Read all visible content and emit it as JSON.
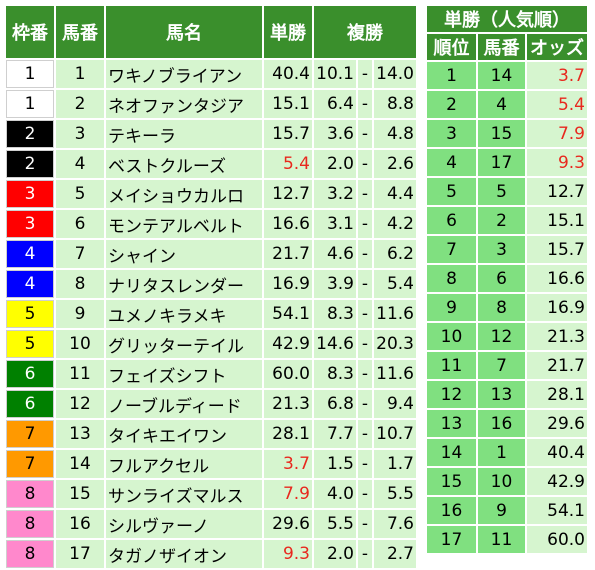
{
  "main_headers": {
    "frame": "枠番",
    "number": "馬番",
    "name": "馬名",
    "win": "単勝",
    "place": "複勝"
  },
  "horses": [
    {
      "frame": "1",
      "num": "1",
      "name": "ワキノブライアン",
      "win": "40.4",
      "place_lo": "10.1",
      "sep": "-",
      "place_hi": "14.0",
      "frame_color": "f1",
      "win_low": false
    },
    {
      "frame": "1",
      "num": "2",
      "name": "ネオファンタジア",
      "win": "15.1",
      "place_lo": "6.4",
      "sep": "-",
      "place_hi": "8.8",
      "frame_color": "f1",
      "win_low": false
    },
    {
      "frame": "2",
      "num": "3",
      "name": "テキーラ",
      "win": "15.7",
      "place_lo": "3.6",
      "sep": "-",
      "place_hi": "4.8",
      "frame_color": "f2",
      "win_low": false
    },
    {
      "frame": "2",
      "num": "4",
      "name": "ベストクルーズ",
      "win": "5.4",
      "place_lo": "2.0",
      "sep": "-",
      "place_hi": "2.6",
      "frame_color": "f2",
      "win_low": true
    },
    {
      "frame": "3",
      "num": "5",
      "name": "メイショウカルロ",
      "win": "12.7",
      "place_lo": "3.2",
      "sep": "-",
      "place_hi": "4.4",
      "frame_color": "f3",
      "win_low": false
    },
    {
      "frame": "3",
      "num": "6",
      "name": "モンテアルベルト",
      "win": "16.6",
      "place_lo": "3.1",
      "sep": "-",
      "place_hi": "4.2",
      "frame_color": "f3",
      "win_low": false
    },
    {
      "frame": "4",
      "num": "7",
      "name": "シャイン",
      "win": "21.7",
      "place_lo": "4.6",
      "sep": "-",
      "place_hi": "6.2",
      "frame_color": "f4",
      "win_low": false
    },
    {
      "frame": "4",
      "num": "8",
      "name": "ナリタスレンダー",
      "win": "16.9",
      "place_lo": "3.9",
      "sep": "-",
      "place_hi": "5.4",
      "frame_color": "f4",
      "win_low": false
    },
    {
      "frame": "5",
      "num": "9",
      "name": "ユメノキラメキ",
      "win": "54.1",
      "place_lo": "8.3",
      "sep": "-",
      "place_hi": "11.6",
      "frame_color": "f5",
      "win_low": false
    },
    {
      "frame": "5",
      "num": "10",
      "name": "グリッターテイル",
      "win": "42.9",
      "place_lo": "14.6",
      "sep": "-",
      "place_hi": "20.3",
      "frame_color": "f5",
      "win_low": false
    },
    {
      "frame": "6",
      "num": "11",
      "name": "フェイズシフト",
      "win": "60.0",
      "place_lo": "8.3",
      "sep": "-",
      "place_hi": "11.6",
      "frame_color": "f6",
      "win_low": false
    },
    {
      "frame": "6",
      "num": "12",
      "name": "ノーブルディード",
      "win": "21.3",
      "place_lo": "6.8",
      "sep": "-",
      "place_hi": "9.4",
      "frame_color": "f6",
      "win_low": false
    },
    {
      "frame": "7",
      "num": "13",
      "name": "タイキエイワン",
      "win": "28.1",
      "place_lo": "7.7",
      "sep": "-",
      "place_hi": "10.7",
      "frame_color": "f7",
      "win_low": false
    },
    {
      "frame": "7",
      "num": "14",
      "name": "フルアクセル",
      "win": "3.7",
      "place_lo": "1.5",
      "sep": "-",
      "place_hi": "1.7",
      "frame_color": "f7",
      "win_low": true
    },
    {
      "frame": "8",
      "num": "15",
      "name": "サンライズマルス",
      "win": "7.9",
      "place_lo": "4.0",
      "sep": "-",
      "place_hi": "5.5",
      "frame_color": "f8",
      "win_low": true
    },
    {
      "frame": "8",
      "num": "16",
      "name": "シルヴァーノ",
      "win": "29.6",
      "place_lo": "5.5",
      "sep": "-",
      "place_hi": "7.6",
      "frame_color": "f8",
      "win_low": false
    },
    {
      "frame": "8",
      "num": "17",
      "name": "タガノザイオン",
      "win": "9.3",
      "place_lo": "2.0",
      "sep": "-",
      "place_hi": "2.7",
      "frame_color": "f8",
      "win_low": true
    }
  ],
  "popularity": {
    "title": "単勝（人気順）",
    "headers": {
      "rank": "順位",
      "number": "馬番",
      "odds": "オッズ"
    },
    "rows": [
      {
        "rank": "1",
        "num": "14",
        "odds": "3.7",
        "low": true
      },
      {
        "rank": "2",
        "num": "4",
        "odds": "5.4",
        "low": true
      },
      {
        "rank": "3",
        "num": "15",
        "odds": "7.9",
        "low": true
      },
      {
        "rank": "4",
        "num": "17",
        "odds": "9.3",
        "low": true
      },
      {
        "rank": "5",
        "num": "5",
        "odds": "12.7",
        "low": false
      },
      {
        "rank": "6",
        "num": "2",
        "odds": "15.1",
        "low": false
      },
      {
        "rank": "7",
        "num": "3",
        "odds": "15.7",
        "low": false
      },
      {
        "rank": "8",
        "num": "6",
        "odds": "16.6",
        "low": false
      },
      {
        "rank": "9",
        "num": "8",
        "odds": "16.9",
        "low": false
      },
      {
        "rank": "10",
        "num": "12",
        "odds": "21.3",
        "low": false
      },
      {
        "rank": "11",
        "num": "7",
        "odds": "21.7",
        "low": false
      },
      {
        "rank": "12",
        "num": "13",
        "odds": "28.1",
        "low": false
      },
      {
        "rank": "13",
        "num": "16",
        "odds": "29.6",
        "low": false
      },
      {
        "rank": "14",
        "num": "1",
        "odds": "40.4",
        "low": false
      },
      {
        "rank": "15",
        "num": "10",
        "odds": "42.9",
        "low": false
      },
      {
        "rank": "16",
        "num": "9",
        "odds": "54.1",
        "low": false
      },
      {
        "rank": "17",
        "num": "11",
        "odds": "60.0",
        "low": false
      }
    ]
  },
  "colors": {
    "header_green": "#3a8f2c",
    "row_light_green": "#d6f5cf",
    "rank_green": "#80e080",
    "low_odds_red": "#e8281e"
  }
}
